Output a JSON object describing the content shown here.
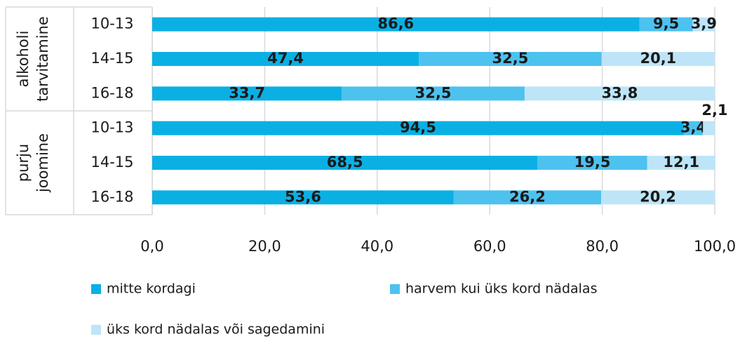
{
  "chart_data": {
    "type": "stacked-barh",
    "groups": [
      {
        "label": [
          "alkoholi",
          "tarvitamine"
        ],
        "categories": [
          "10-13",
          "14-15",
          "16-18"
        ]
      },
      {
        "label": [
          "purju",
          "joomine"
        ],
        "categories": [
          "10-13",
          "14-15",
          "16-18"
        ]
      }
    ],
    "series": [
      {
        "name": "mitte kordagi",
        "color": "#0ab0e4",
        "values": [
          86.6,
          47.4,
          33.7,
          94.5,
          68.5,
          53.6
        ],
        "value_labels": [
          "86,6",
          "47,4",
          "33,7",
          "94,5",
          "68,5",
          "53,6"
        ]
      },
      {
        "name": "harvem kui üks kord nädalas",
        "color": "#4dc2ef",
        "values": [
          9.5,
          32.5,
          32.5,
          3.4,
          19.5,
          26.2
        ],
        "value_labels": [
          "9,5",
          "32,5",
          "32,5",
          "3,4",
          "19,5",
          "26,2"
        ]
      },
      {
        "name": "üks kord nädalas või sagedamini",
        "color": "#bde5f7",
        "values": [
          3.9,
          20.1,
          33.8,
          2.1,
          12.1,
          20.2
        ],
        "value_labels": [
          "3,9",
          "20,1",
          "33,8",
          "2,1",
          "12,1",
          "20,2"
        ]
      }
    ],
    "xlim": [
      0,
      100
    ],
    "xticks": [
      {
        "value": 0,
        "label": "0,0"
      },
      {
        "value": 20,
        "label": "20,0"
      },
      {
        "value": 40,
        "label": "40,0"
      },
      {
        "value": 60,
        "label": "60,0"
      },
      {
        "value": 80,
        "label": "80,0"
      },
      {
        "value": 100,
        "label": "100,0"
      }
    ],
    "grid": true,
    "legend": "bottom"
  }
}
